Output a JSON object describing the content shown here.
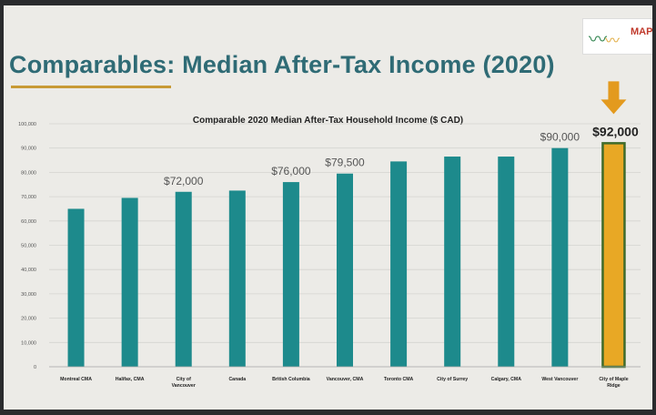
{
  "logo": {
    "text": "MAP"
  },
  "slide_title": "Comparables: Median After-Tax Income (2020)",
  "chart_data": {
    "type": "bar",
    "title": "Comparable 2020 Median After-Tax Household Income ($ CAD)",
    "categories": [
      "Montreal CMA",
      "Halifax, CMA",
      "City of Vancouver",
      "Canada",
      "British Columbia",
      "Vancouver, CMA",
      "Toronto CMA",
      "City of Surrey",
      "Calgary, CMA",
      "West Vancouver",
      "City of Maple Ridge"
    ],
    "values": [
      65000,
      69500,
      72000,
      72500,
      76000,
      79500,
      84500,
      86500,
      86500,
      90000,
      92000
    ],
    "data_labels": [
      "",
      "",
      "$72,000",
      "",
      "$76,000",
      "$79,500",
      "",
      "",
      "",
      "$90,000",
      "$92,000"
    ],
    "y_ticks": [
      "0",
      "10,000",
      "20,000",
      "30,000",
      "40,000",
      "50,000",
      "60,000",
      "70,000",
      "80,000",
      "90,000",
      "100,000"
    ],
    "ylim": [
      0,
      100000
    ],
    "grid": true,
    "highlight_index": 10,
    "colors": {
      "bar": "#1d8a8c",
      "highlight": "#e8a825",
      "highlight_border": "#3f6b2a",
      "arrow": "#e39a1e"
    }
  }
}
